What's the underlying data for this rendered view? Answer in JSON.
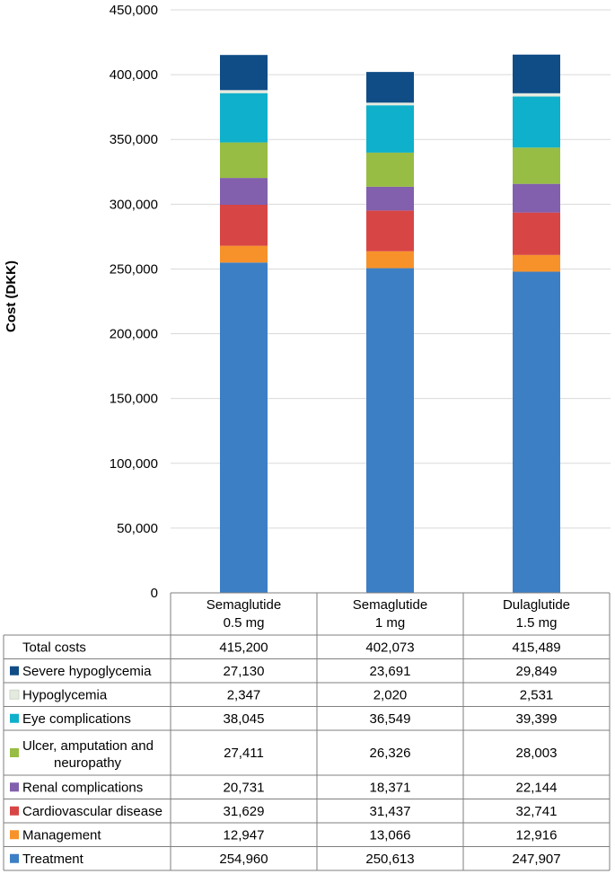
{
  "chart_data": {
    "type": "bar",
    "stacked": true,
    "ylabel": "Cost (DKK)",
    "ylim": [
      0,
      450000
    ],
    "yticks": [
      "0",
      "50,000",
      "100,000",
      "150,000",
      "200,000",
      "250,000",
      "300,000",
      "350,000",
      "400,000",
      "450,000"
    ],
    "grid": true,
    "categories": [
      {
        "line1": "Semaglutide",
        "line2": "0.5 mg"
      },
      {
        "line1": "Semaglutide",
        "line2": "1 mg"
      },
      {
        "line1": "Dulaglutide",
        "line2": "1.5 mg"
      }
    ],
    "totals": {
      "label": "Total costs",
      "values": [
        415200,
        402073,
        415489
      ],
      "display": [
        "415,200",
        "402,073",
        "415,489"
      ]
    },
    "series": [
      {
        "name": "Treatment",
        "color": "#3c7fc5",
        "values": [
          254960,
          250613,
          247907
        ],
        "display": [
          "254,960",
          "250,613",
          "247,907"
        ]
      },
      {
        "name": "Management",
        "color": "#f7922a",
        "values": [
          12947,
          13066,
          12916
        ],
        "display": [
          "12,947",
          "13,066",
          "12,916"
        ]
      },
      {
        "name": "Cardiovascular disease",
        "color": "#d84545",
        "values": [
          31629,
          31437,
          32741
        ],
        "display": [
          "31,629",
          "31,437",
          "32,741"
        ]
      },
      {
        "name": "Renal complications",
        "color": "#8260ad",
        "values": [
          20731,
          18371,
          22144
        ],
        "display": [
          "20,731",
          "18,371",
          "22,144"
        ]
      },
      {
        "name": "Ulcer, amputation and neuropathy",
        "label_lines": [
          "Ulcer, amputation and",
          "neuropathy"
        ],
        "color": "#97bd44",
        "values": [
          27411,
          26326,
          28003
        ],
        "display": [
          "27,411",
          "26,326",
          "28,003"
        ]
      },
      {
        "name": "Eye complications",
        "color": "#0eb0cb",
        "values": [
          38045,
          36549,
          39399
        ],
        "display": [
          "38,045",
          "36,549",
          "39,399"
        ]
      },
      {
        "name": "Hypoglycemia",
        "color": "#e5eadf",
        "values": [
          2347,
          2020,
          2531
        ],
        "display": [
          "2,347",
          "2,020",
          "2,531"
        ]
      },
      {
        "name": "Severe hypoglycemia",
        "color": "#104d87",
        "values": [
          27130,
          23691,
          29849
        ],
        "display": [
          "27,130",
          "23,691",
          "29,849"
        ]
      }
    ]
  }
}
